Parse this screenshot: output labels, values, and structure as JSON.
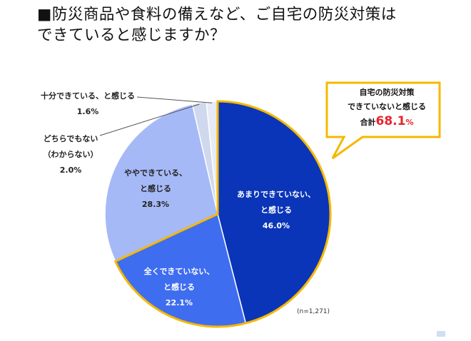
{
  "title": {
    "line1": "■防災商品や食料の備えなど、ご自宅の防災対策は",
    "line2": "できていると感じますか？"
  },
  "chart_data": {
    "type": "pie",
    "slices": [
      {
        "label": "あまりできていない、と感じる",
        "label_lines": [
          "あまりできていない、",
          "と感じる"
        ],
        "value": 46.0,
        "value_label": "46.0%",
        "color": "#0a35b8"
      },
      {
        "label": "全くできていない、と感じる",
        "label_lines": [
          "全くできていない、",
          "と感じる"
        ],
        "value": 22.1,
        "value_label": "22.1%",
        "color": "#3f6df0"
      },
      {
        "label": "ややできている、と感じる",
        "label_lines": [
          "ややできている、",
          "と感じる"
        ],
        "value": 28.3,
        "value_label": "28.3%",
        "color": "#a6b9f7"
      },
      {
        "label": "どちらでもない（わからない）",
        "label_lines": [
          "どちらでもない",
          "（わからない）"
        ],
        "value": 2.0,
        "value_label": "2.0%",
        "color": "#cfd8ec"
      },
      {
        "label": "十分できている、と感じる",
        "label_lines": [
          "十分できている、と感じる"
        ],
        "value": 1.6,
        "value_label": "1.6%",
        "color": "#e6ebf5"
      }
    ],
    "highlight_color": "#f5b800",
    "n_note": "(n=1,271)",
    "callout": {
      "line1": "自宅の防災対策",
      "line2": "できていないと感じる",
      "total_prefix": "合計",
      "total_value": "68.1",
      "total_unit": "%"
    }
  }
}
